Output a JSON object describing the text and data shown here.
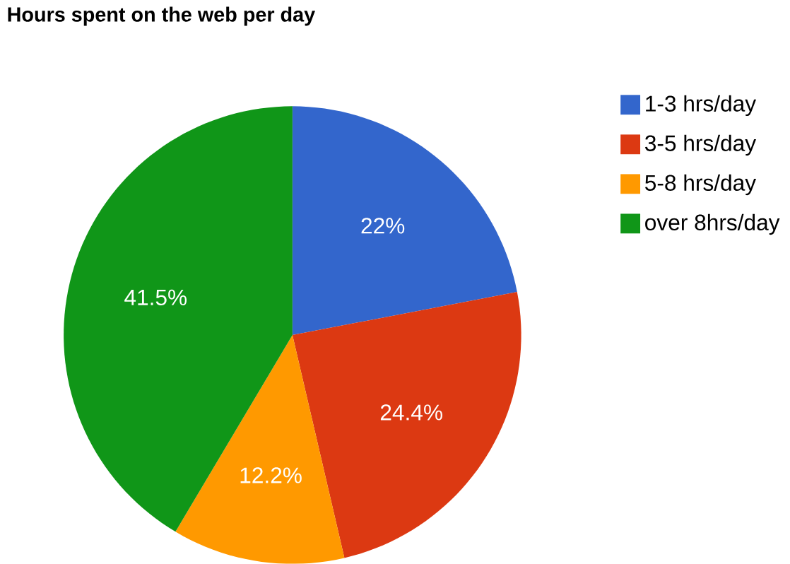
{
  "chart_data": {
    "type": "pie",
    "title": "Hours spent on the web per day",
    "categories": [
      "1-3 hrs/day",
      "3-5 hrs/day",
      "5-8 hrs/day",
      "over 8hrs/day"
    ],
    "values": [
      22,
      24.4,
      12.2,
      41.5
    ],
    "value_labels": [
      "22%",
      "24.4%",
      "12.2%",
      "41.5%"
    ],
    "colors": [
      "#3366cc",
      "#dc3912",
      "#ff9900",
      "#109618"
    ],
    "legend": "right"
  }
}
